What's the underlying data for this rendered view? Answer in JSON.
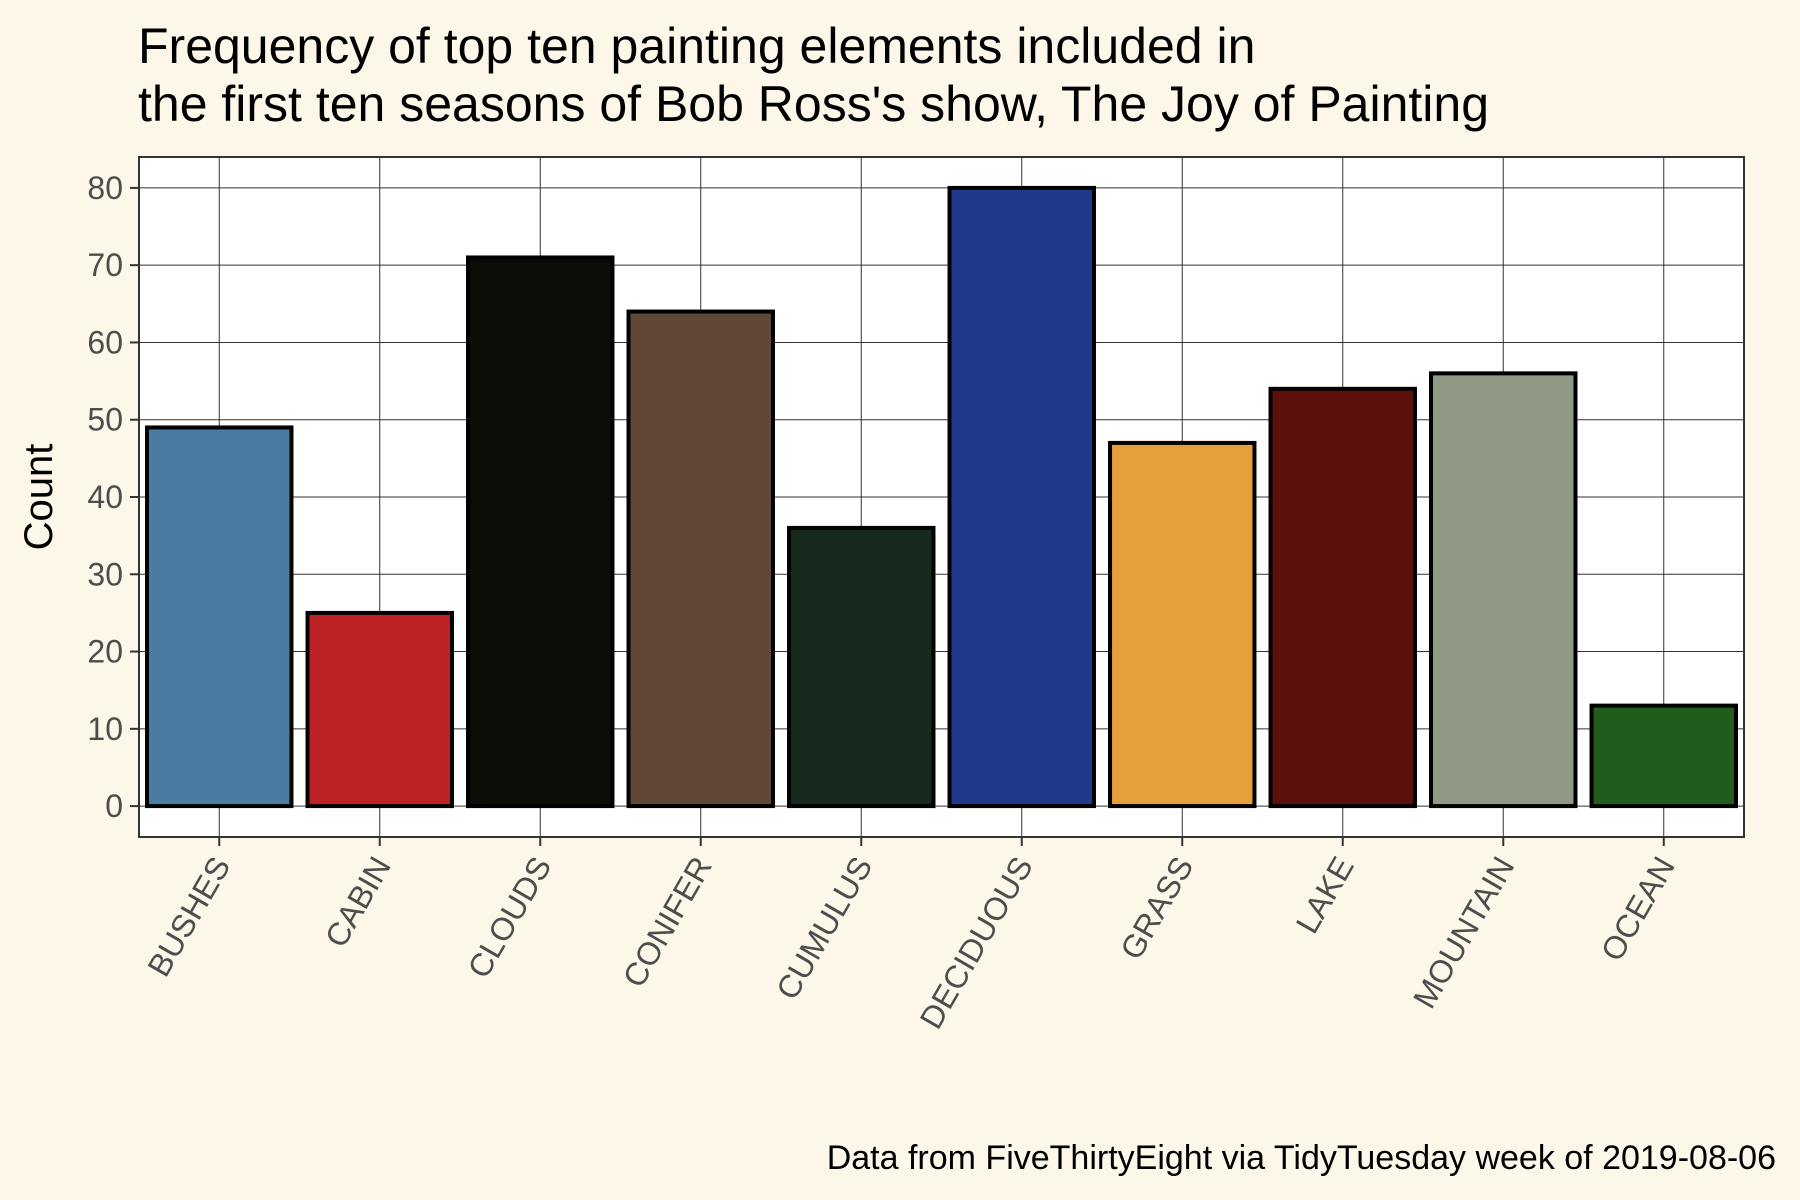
{
  "chart_data": {
    "type": "bar",
    "title_lines": [
      "Frequency of top ten painting elements included in",
      "the first ten seasons of Bob Ross's show, The Joy of Painting"
    ],
    "xlabel": "",
    "ylabel": "Count",
    "caption": "Data from FiveThirtyEight via TidyTuesday week of 2019-08-06",
    "categories": [
      "BUSHES",
      "CABIN",
      "CLOUDS",
      "CONIFER",
      "CUMULUS",
      "DECIDUOUS",
      "GRASS",
      "LAKE",
      "MOUNTAIN",
      "OCEAN"
    ],
    "values": [
      49,
      25,
      71,
      64,
      36,
      80,
      47,
      54,
      56,
      13
    ],
    "bar_colors": [
      "#4a7ba2",
      "#bd2324",
      "#0c0d09",
      "#604837",
      "#17291d",
      "#21398b",
      "#e59f3a",
      "#5b100b",
      "#8f9986",
      "#205c1a"
    ],
    "ylim": [
      -4,
      84
    ],
    "y_ticks": [
      0,
      10,
      20,
      30,
      40,
      50,
      60,
      70,
      80
    ],
    "grid": true,
    "legend": "none"
  }
}
